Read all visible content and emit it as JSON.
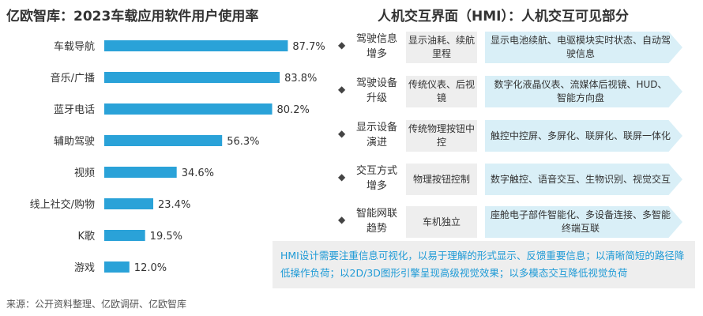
{
  "left_title": "亿欧智库：2023车载应用软件用户使用率",
  "right_title": "人机交互界面（HMI）：人机交互可见部分",
  "chart_data": {
    "type": "bar",
    "orientation": "horizontal",
    "categories": [
      "车载导航",
      "音乐/广播",
      "蓝牙电话",
      "辅助驾驶",
      "视频",
      "线上社交/购物",
      "K歌",
      "游戏"
    ],
    "values": [
      87.7,
      83.8,
      80.2,
      56.3,
      34.6,
      23.4,
      19.5,
      12.0
    ],
    "value_labels": [
      "87.7%",
      "83.8%",
      "80.2%",
      "56.3%",
      "34.6%",
      "23.4%",
      "19.5%",
      "12.0%"
    ],
    "xlim": [
      0,
      100
    ],
    "bar_color": "#2aa2d8"
  },
  "hmi": {
    "bullet": "◆",
    "rows": [
      {
        "label": "驾驶信息增多",
        "old": "显示油耗、续航里程",
        "new": "显示电池续航、电驱模块实时状态、自动驾驶信息"
      },
      {
        "label": "驾驶设备升级",
        "old": "传统仪表、后视镜",
        "new": "数字化液晶仪表、流媒体后视镜、HUD、智能方向盘"
      },
      {
        "label": "显示设备演进",
        "old": "传统物理按钮中控",
        "new": "触控中控屏、多屏化、联屏化、联屏一体化"
      },
      {
        "label": "交互方式增多",
        "old": "物理按钮控制",
        "new": "数字触控、语音交互、生物识别、视觉交互"
      },
      {
        "label": "智能网联趋势",
        "old": "车机独立",
        "new": "座舱电子部件智能化、多设备连接、多智能终端互联"
      }
    ]
  },
  "note": "HMI设计需要注重信息可视化，以易于理解的形式显示、反馈重要信息；以清晰简短的路径降低操作负荷；以2D/3D图形引擎呈现高级视觉效果；以多模态交互降低视觉负荷",
  "source": "来源：公开资料整理、亿欧调研、亿欧智库",
  "colors": {
    "bar": "#2aa2d8",
    "note_text": "#1e9ad6",
    "old_box": "#eeeeee",
    "new_box": "#d9eff7"
  }
}
